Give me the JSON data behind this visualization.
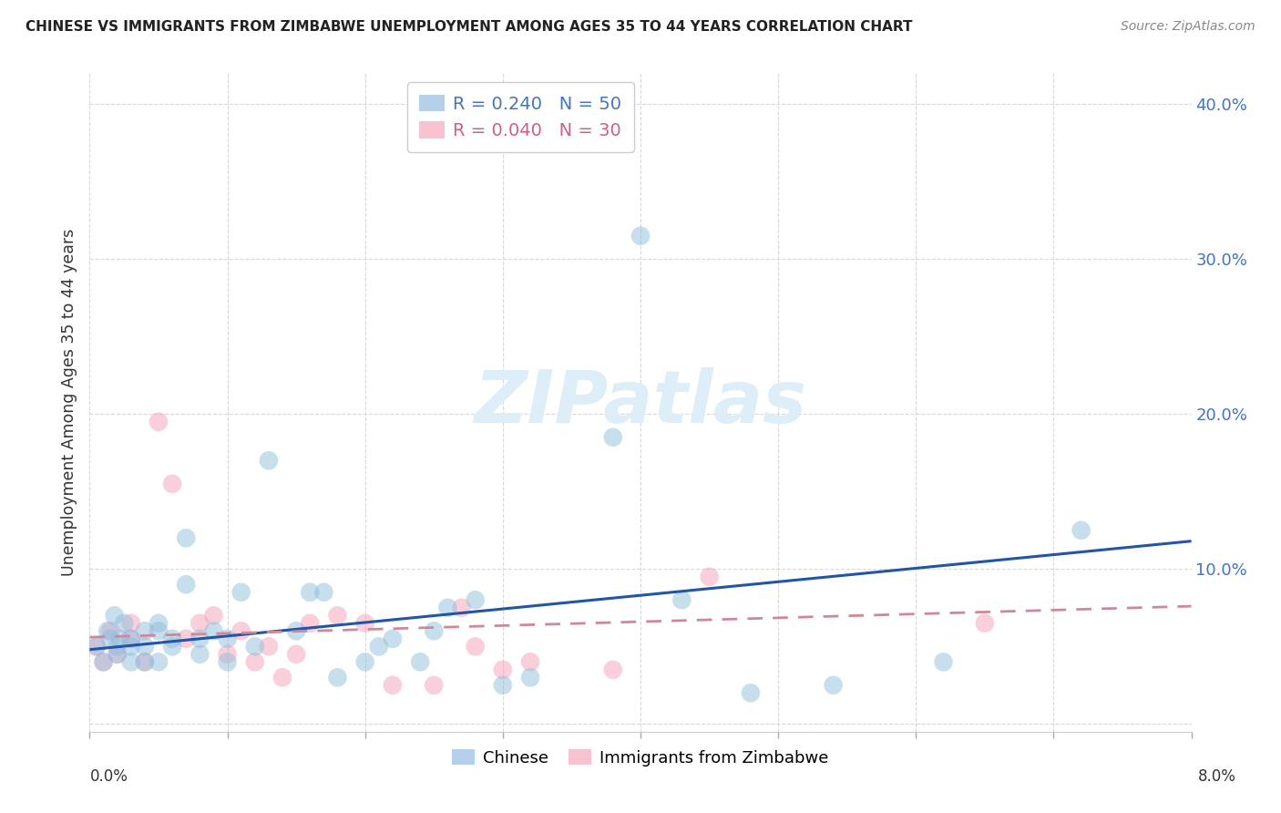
{
  "title": "CHINESE VS IMMIGRANTS FROM ZIMBABWE UNEMPLOYMENT AMONG AGES 35 TO 44 YEARS CORRELATION CHART",
  "source": "Source: ZipAtlas.com",
  "ylabel": "Unemployment Among Ages 35 to 44 years",
  "xlim": [
    0.0,
    0.08
  ],
  "ylim": [
    -0.005,
    0.42
  ],
  "yticks": [
    0.0,
    0.1,
    0.2,
    0.3,
    0.4
  ],
  "ytick_labels": [
    "",
    "10.0%",
    "20.0%",
    "30.0%",
    "40.0%"
  ],
  "xtick_positions": [
    0.0,
    0.01,
    0.02,
    0.03,
    0.04,
    0.05,
    0.06,
    0.07,
    0.08
  ],
  "legend_R_N": [
    {
      "label": "R = 0.240   N = 50",
      "color": "#a8c8e8"
    },
    {
      "label": "R = 0.040   N = 30",
      "color": "#f8b8c8"
    }
  ],
  "chinese_color": "#90bedd",
  "zimbabwe_color": "#f4a0b8",
  "chinese_line_color": "#2255aa",
  "zimbabwe_line_color": "#d08898",
  "watermark_text": "ZIPatlas",
  "watermark_color": "#ddeef8",
  "chinese_scatter_x": [
    0.0005,
    0.001,
    0.0013,
    0.0015,
    0.0018,
    0.002,
    0.002,
    0.0022,
    0.0025,
    0.003,
    0.003,
    0.003,
    0.004,
    0.004,
    0.004,
    0.005,
    0.005,
    0.005,
    0.006,
    0.006,
    0.007,
    0.007,
    0.008,
    0.008,
    0.009,
    0.01,
    0.01,
    0.011,
    0.012,
    0.013,
    0.015,
    0.016,
    0.017,
    0.018,
    0.02,
    0.021,
    0.022,
    0.024,
    0.025,
    0.026,
    0.028,
    0.03,
    0.032,
    0.038,
    0.04,
    0.043,
    0.048,
    0.054,
    0.062,
    0.072
  ],
  "chinese_scatter_y": [
    0.05,
    0.04,
    0.06,
    0.055,
    0.07,
    0.045,
    0.05,
    0.055,
    0.065,
    0.04,
    0.05,
    0.055,
    0.04,
    0.05,
    0.06,
    0.04,
    0.06,
    0.065,
    0.05,
    0.055,
    0.12,
    0.09,
    0.045,
    0.055,
    0.06,
    0.04,
    0.055,
    0.085,
    0.05,
    0.17,
    0.06,
    0.085,
    0.085,
    0.03,
    0.04,
    0.05,
    0.055,
    0.04,
    0.06,
    0.075,
    0.08,
    0.025,
    0.03,
    0.185,
    0.315,
    0.08,
    0.02,
    0.025,
    0.04,
    0.125
  ],
  "zimbabwe_scatter_x": [
    0.0005,
    0.001,
    0.0015,
    0.002,
    0.003,
    0.003,
    0.004,
    0.005,
    0.006,
    0.007,
    0.008,
    0.009,
    0.01,
    0.011,
    0.012,
    0.013,
    0.014,
    0.015,
    0.016,
    0.018,
    0.02,
    0.022,
    0.025,
    0.027,
    0.028,
    0.03,
    0.032,
    0.038,
    0.045,
    0.065
  ],
  "zimbabwe_scatter_y": [
    0.05,
    0.04,
    0.06,
    0.045,
    0.055,
    0.065,
    0.04,
    0.195,
    0.155,
    0.055,
    0.065,
    0.07,
    0.045,
    0.06,
    0.04,
    0.05,
    0.03,
    0.045,
    0.065,
    0.07,
    0.065,
    0.025,
    0.025,
    0.075,
    0.05,
    0.035,
    0.04,
    0.035,
    0.095,
    0.065
  ],
  "chinese_line_x": [
    0.0,
    0.08
  ],
  "chinese_line_y": [
    0.048,
    0.118
  ],
  "zimbabwe_line_x": [
    0.0,
    0.08
  ],
  "zimbabwe_line_y": [
    0.056,
    0.076
  ]
}
